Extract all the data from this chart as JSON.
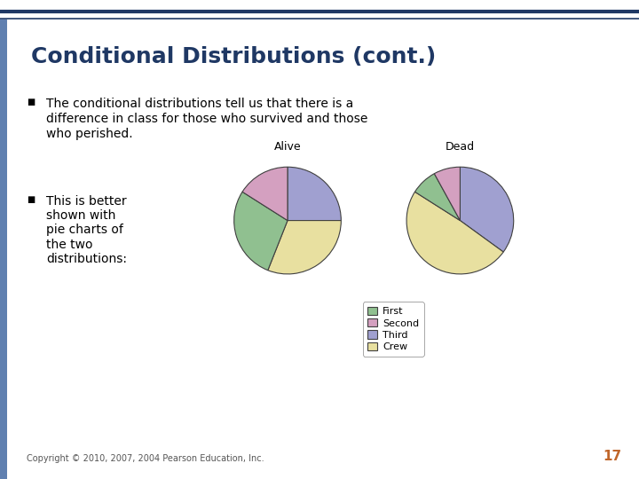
{
  "title": "Conditional Distributions (cont.)",
  "title_color": "#1f3864",
  "header_line_color": "#1f3864",
  "background_color": "#ffffff",
  "bullet1_lines": [
    "The conditional distributions tell us that there is a",
    "difference in class for those who survived and those",
    "who perished."
  ],
  "bullet2": "This is better\nshown with\npie charts of\nthe two\ndistributions:",
  "pie_alive_label": "Alive",
  "pie_dead_label": "Dead",
  "alive_values": [
    0.25,
    0.31,
    0.28,
    0.16
  ],
  "dead_values": [
    0.35,
    0.49,
    0.08,
    0.08
  ],
  "pie_colors": [
    "#a0a0d0",
    "#e8e0a0",
    "#90c090",
    "#d4a0c0"
  ],
  "legend_labels": [
    "First",
    "Second",
    "Third",
    "Crew"
  ],
  "legend_colors": [
    "#90c090",
    "#d4a0c0",
    "#a0a0d0",
    "#e8e0a0"
  ],
  "pie_edge_color": "#404040",
  "pie_label_fontsize": 9,
  "legend_fontsize": 8,
  "copyright_text": "Copyright © 2010, 2007, 2004 Pearson Education, Inc.",
  "page_number": "17",
  "left_bar_color": "#6080b0",
  "bullet_color": "#000000",
  "text_color": "#000000"
}
